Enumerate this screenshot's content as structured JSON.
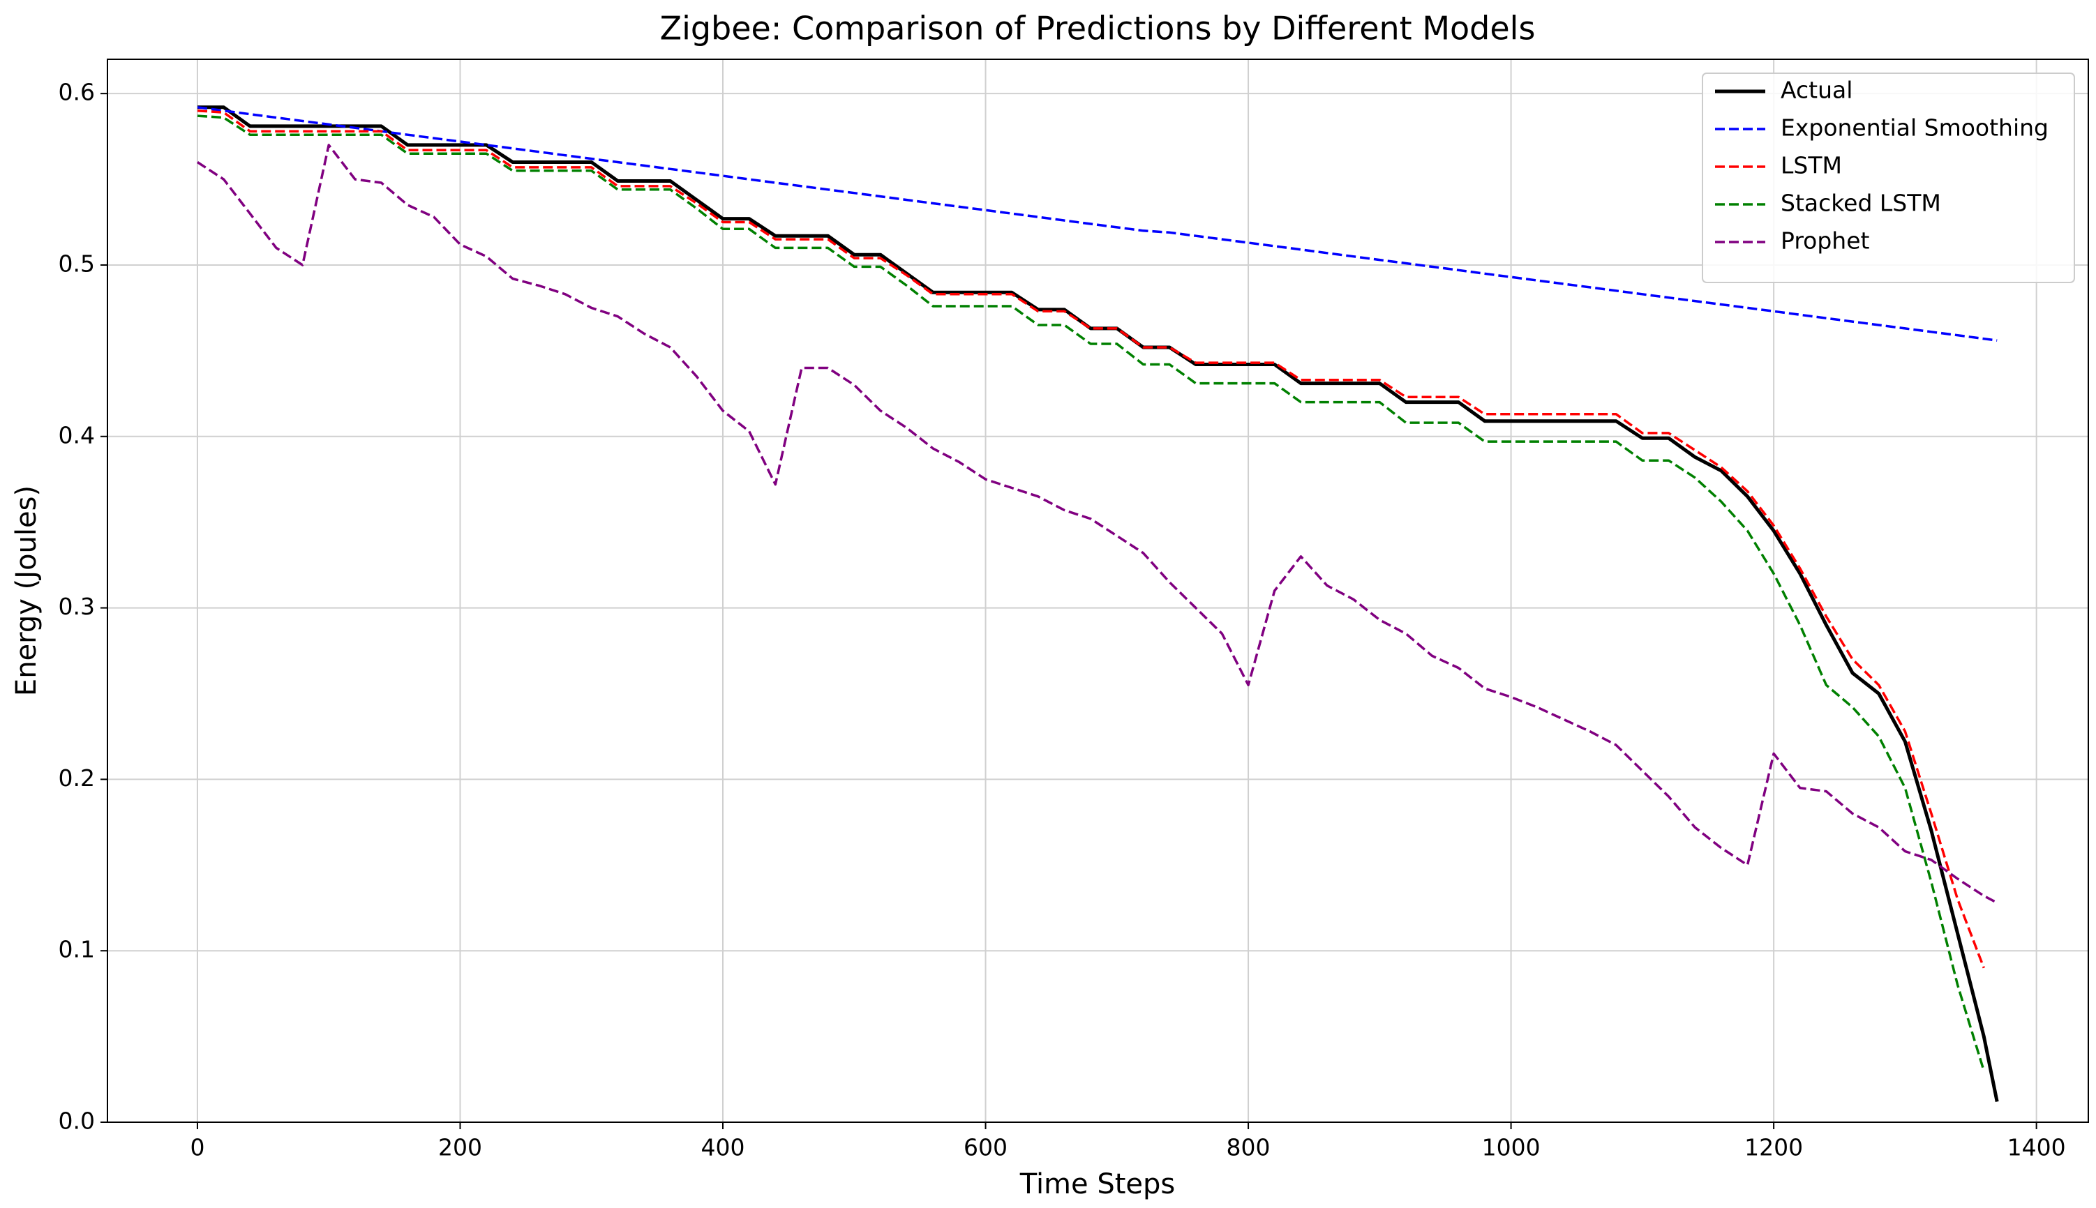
{
  "chart_data": {
    "type": "line",
    "title": "Zigbee: Comparison of Predictions by Different Models",
    "xlabel": "Time Steps",
    "ylabel": "Energy (Joules)",
    "x": [
      0,
      20,
      40,
      60,
      80,
      100,
      120,
      140,
      160,
      180,
      200,
      220,
      240,
      260,
      280,
      300,
      320,
      340,
      360,
      380,
      400,
      420,
      440,
      460,
      480,
      500,
      520,
      540,
      560,
      580,
      600,
      620,
      640,
      660,
      680,
      700,
      720,
      740,
      760,
      780,
      800,
      820,
      840,
      860,
      880,
      900,
      920,
      940,
      960,
      980,
      1000,
      1020,
      1040,
      1060,
      1080,
      1100,
      1120,
      1140,
      1160,
      1180,
      1200,
      1220,
      1240,
      1260,
      1280,
      1300,
      1320,
      1340,
      1360,
      1370
    ],
    "series": [
      {
        "name": "Actual",
        "color": "#000000",
        "style": "solid",
        "values": [
          0.592,
          0.592,
          0.581,
          0.581,
          0.581,
          0.581,
          0.581,
          0.581,
          0.57,
          0.57,
          0.57,
          0.57,
          0.56,
          0.56,
          0.56,
          0.56,
          0.549,
          0.549,
          0.549,
          0.538,
          0.527,
          0.527,
          0.517,
          0.517,
          0.517,
          0.506,
          0.506,
          0.495,
          0.484,
          0.484,
          0.484,
          0.484,
          0.474,
          0.474,
          0.463,
          0.463,
          0.452,
          0.452,
          0.442,
          0.442,
          0.442,
          0.442,
          0.431,
          0.431,
          0.431,
          0.431,
          0.42,
          0.42,
          0.42,
          0.409,
          0.409,
          0.409,
          0.409,
          0.409,
          0.409,
          0.399,
          0.399,
          0.388,
          0.38,
          0.365,
          0.345,
          0.32,
          0.29,
          0.262,
          0.25,
          0.222,
          0.17,
          0.11,
          0.05,
          0.012
        ]
      },
      {
        "name": "Exponential Smoothing",
        "color": "#0000ff",
        "style": "dashed",
        "values": [
          0.592,
          0.59,
          0.588,
          0.586,
          0.584,
          0.582,
          0.58,
          0.578,
          0.576,
          0.574,
          0.572,
          0.57,
          0.568,
          0.566,
          0.564,
          0.562,
          0.56,
          0.558,
          0.556,
          0.554,
          0.552,
          0.55,
          0.548,
          0.546,
          0.544,
          0.542,
          0.54,
          0.538,
          0.536,
          0.534,
          0.532,
          0.53,
          0.528,
          0.526,
          0.524,
          0.522,
          0.52,
          0.519,
          0.517,
          0.515,
          0.513,
          0.511,
          0.509,
          0.507,
          0.505,
          0.503,
          0.501,
          0.499,
          0.497,
          0.495,
          0.493,
          0.491,
          0.489,
          0.487,
          0.485,
          0.483,
          0.481,
          0.479,
          0.477,
          0.475,
          0.473,
          0.471,
          0.469,
          0.467,
          0.465,
          0.463,
          0.461,
          0.459,
          0.457,
          0.456
        ]
      },
      {
        "name": "LSTM",
        "color": "#ff0000",
        "style": "dashed",
        "values": [
          0.59,
          0.589,
          0.578,
          0.578,
          0.578,
          0.578,
          0.578,
          0.578,
          0.567,
          0.567,
          0.567,
          0.567,
          0.557,
          0.557,
          0.557,
          0.557,
          0.546,
          0.546,
          0.546,
          0.536,
          0.525,
          0.525,
          0.515,
          0.515,
          0.515,
          0.504,
          0.504,
          0.494,
          0.483,
          0.483,
          0.483,
          0.483,
          0.473,
          0.473,
          0.463,
          0.463,
          0.452,
          0.452,
          0.443,
          0.443,
          0.443,
          0.443,
          0.433,
          0.433,
          0.433,
          0.433,
          0.423,
          0.423,
          0.423,
          0.413,
          0.413,
          0.413,
          0.413,
          0.413,
          0.413,
          0.402,
          0.402,
          0.392,
          0.382,
          0.368,
          0.348,
          0.323,
          0.295,
          0.27,
          0.255,
          0.228,
          0.18,
          0.13,
          0.09,
          null
        ]
      },
      {
        "name": "Stacked LSTM",
        "color": "#008000",
        "style": "dashed",
        "values": [
          0.587,
          0.586,
          0.576,
          0.576,
          0.576,
          0.576,
          0.576,
          0.576,
          0.565,
          0.565,
          0.565,
          0.565,
          0.555,
          0.555,
          0.555,
          0.555,
          0.544,
          0.544,
          0.544,
          0.533,
          0.521,
          0.521,
          0.51,
          0.51,
          0.51,
          0.499,
          0.499,
          0.488,
          0.476,
          0.476,
          0.476,
          0.476,
          0.465,
          0.465,
          0.454,
          0.454,
          0.442,
          0.442,
          0.431,
          0.431,
          0.431,
          0.431,
          0.42,
          0.42,
          0.42,
          0.42,
          0.408,
          0.408,
          0.408,
          0.397,
          0.397,
          0.397,
          0.397,
          0.397,
          0.397,
          0.386,
          0.386,
          0.376,
          0.362,
          0.345,
          0.32,
          0.29,
          0.255,
          0.242,
          0.225,
          0.195,
          0.14,
          0.08,
          0.03,
          null
        ]
      },
      {
        "name": "Prophet",
        "color": "#800080",
        "style": "dashed",
        "values": [
          0.56,
          0.55,
          0.53,
          0.51,
          0.5,
          0.57,
          0.55,
          0.548,
          0.535,
          0.528,
          0.512,
          0.505,
          0.492,
          0.488,
          0.483,
          0.475,
          0.47,
          0.46,
          0.452,
          0.435,
          0.415,
          0.403,
          0.372,
          0.44,
          0.44,
          0.43,
          0.415,
          0.405,
          0.393,
          0.385,
          0.375,
          0.37,
          0.365,
          0.357,
          0.352,
          0.342,
          0.332,
          0.315,
          0.3,
          0.285,
          0.255,
          0.31,
          0.33,
          0.313,
          0.305,
          0.293,
          0.285,
          0.272,
          0.265,
          0.253,
          0.248,
          0.242,
          0.235,
          0.228,
          0.22,
          0.205,
          0.19,
          0.172,
          0.16,
          0.15,
          0.215,
          0.195,
          0.193,
          0.18,
          0.172,
          0.158,
          0.153,
          0.142,
          0.132,
          0.128
        ]
      }
    ],
    "xlim": [
      -68.5,
      1439.5
    ],
    "xticks": [
      0,
      200,
      400,
      600,
      800,
      1000,
      1200,
      1400
    ],
    "ylim": [
      0,
      0.62
    ],
    "yticks": [
      {
        "value": 0,
        "label": "0.0"
      },
      0.1,
      0.2,
      0.3,
      0.4,
      0.5,
      0.6
    ],
    "grid": true,
    "legend": "upper right"
  }
}
